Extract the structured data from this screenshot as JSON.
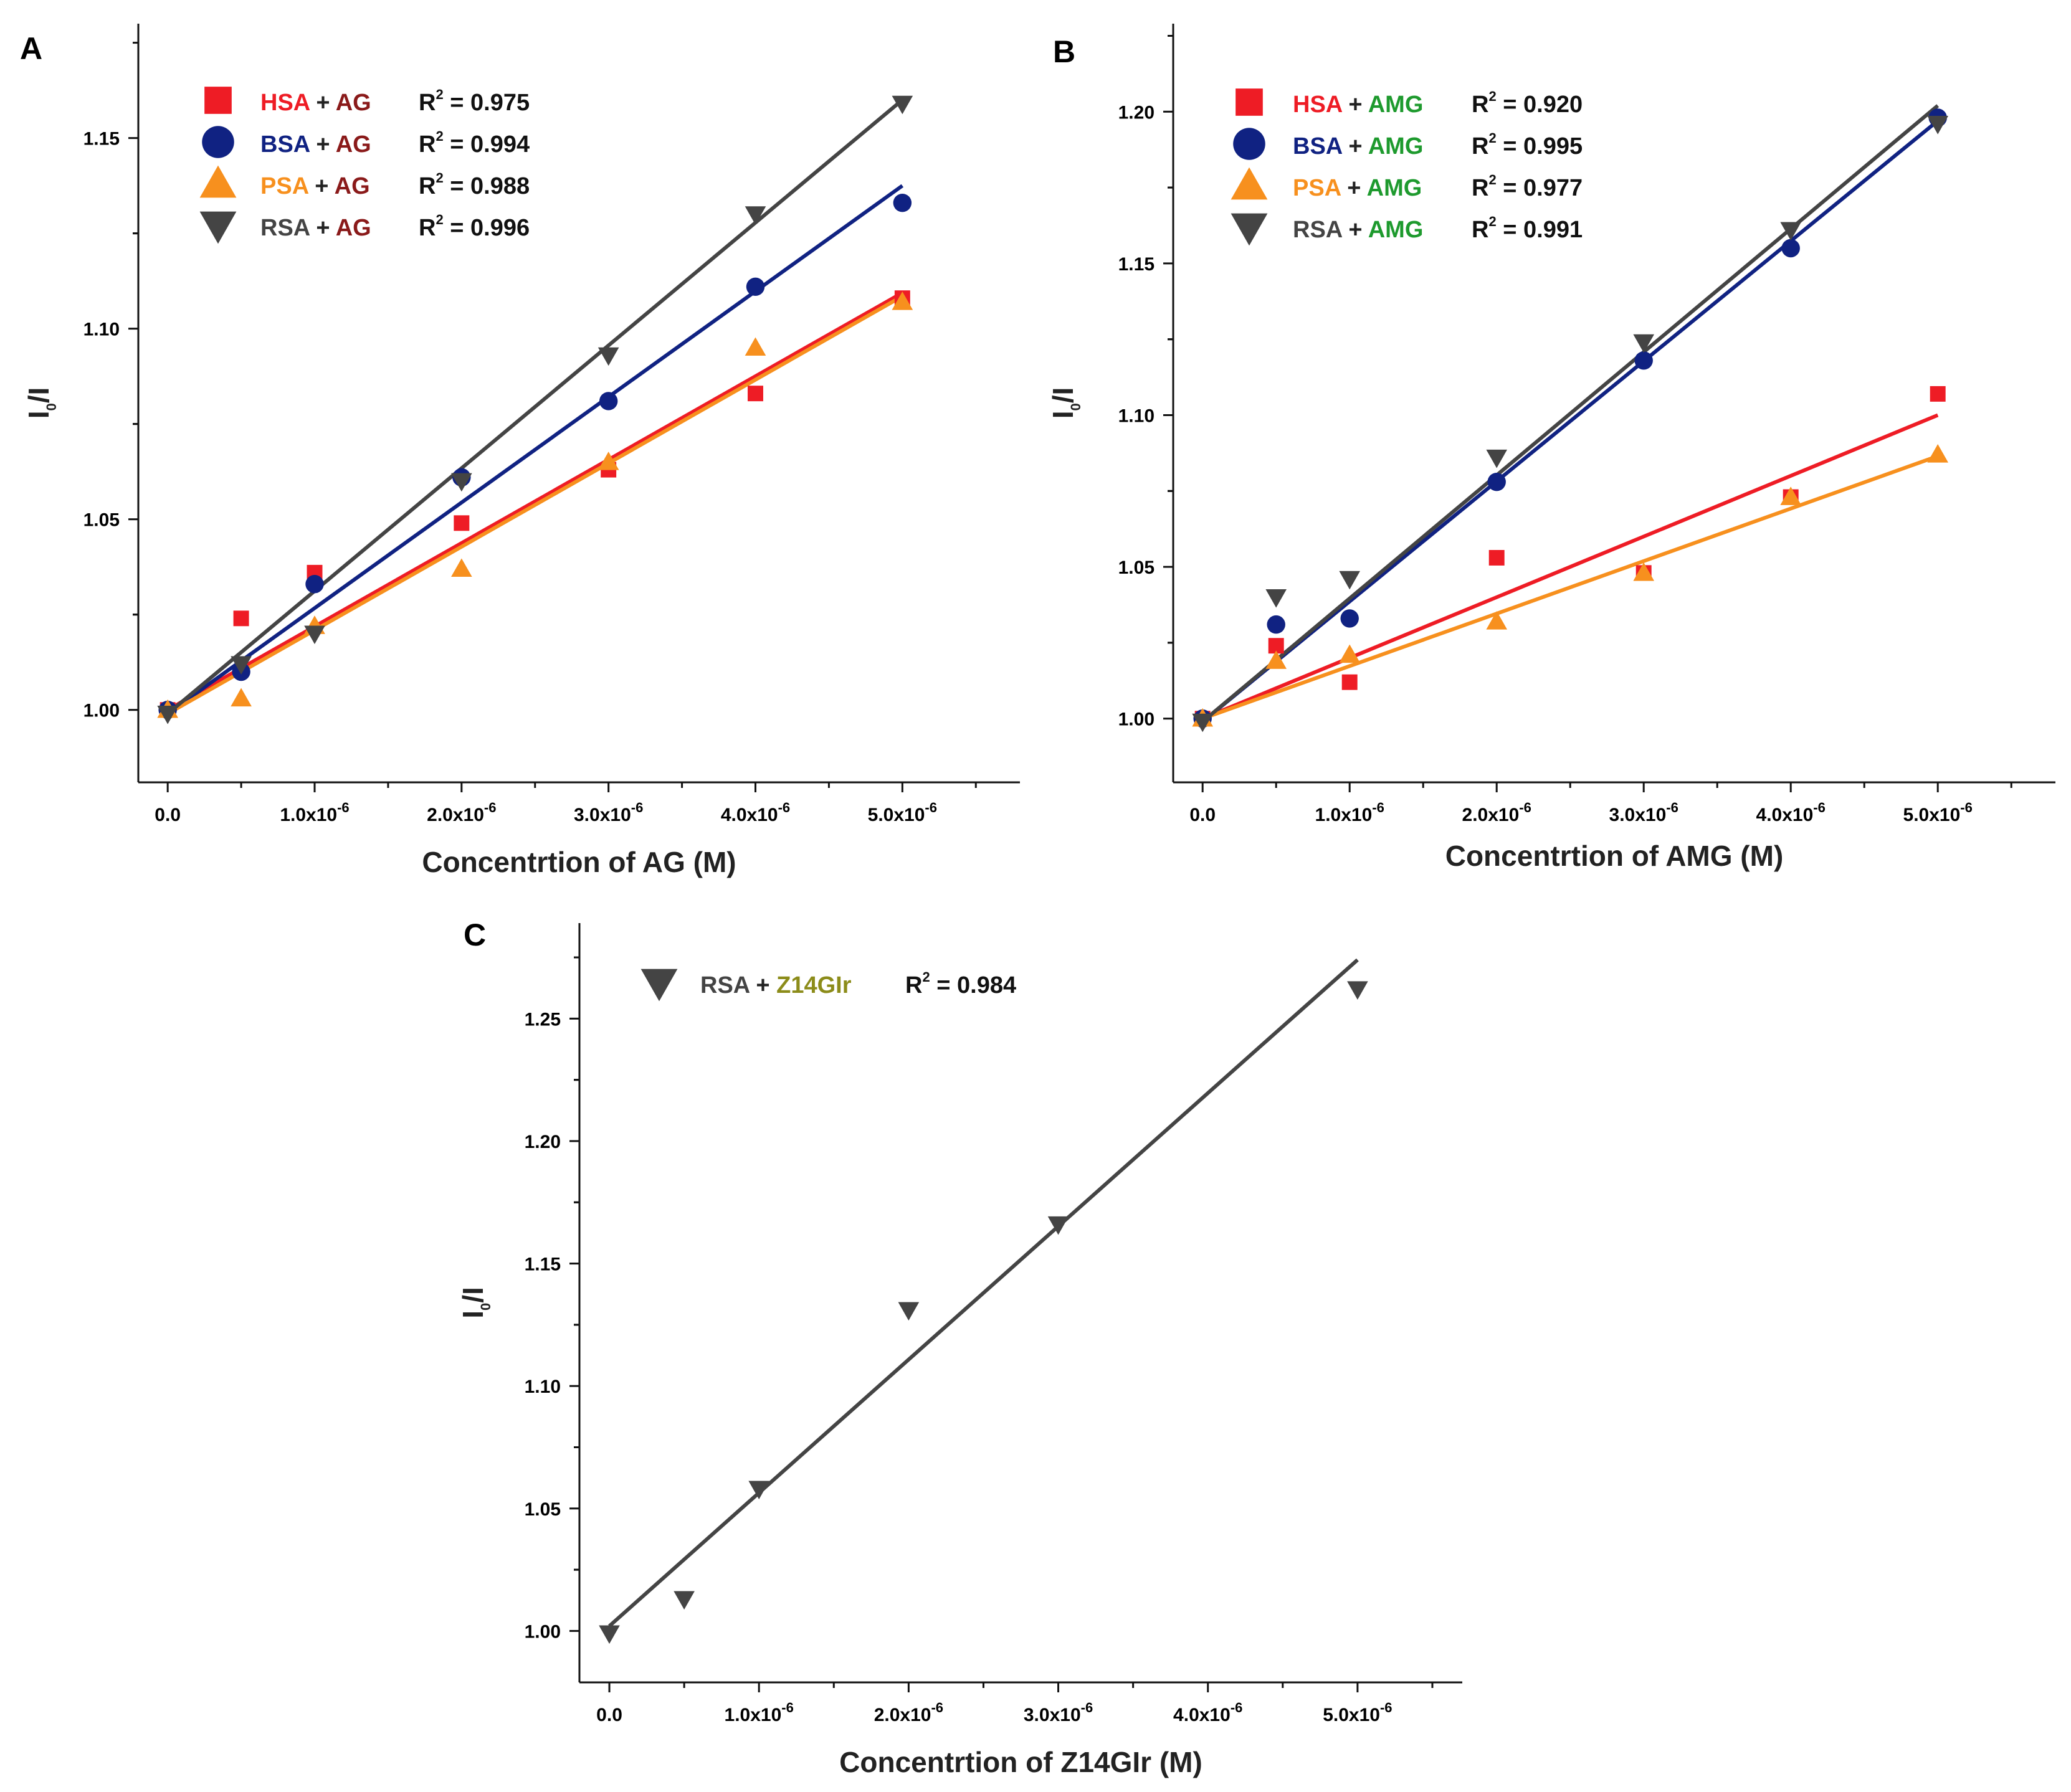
{
  "colors": {
    "HSA": "#ee1c25",
    "BSA": "#102282",
    "PSA": "#f7901e",
    "RSA": "#444444",
    "AG": "#8a1a1a",
    "AMG": "#1e9a2e",
    "Z14GIr": "#8c8c1a",
    "plus": "#222222",
    "axis": "#111111"
  },
  "chart_data": [
    {
      "panel": "A",
      "type": "scatter",
      "xlabel": "Concentrtion of AG (M)",
      "ylabel": "I0/I",
      "ylabel_main": "I",
      "ylabel_sub": "0",
      "ylabel_tail": "/I",
      "xlim": [
        -2e-07,
        5.8e-06
      ],
      "ylim": [
        0.981,
        1.18
      ],
      "xticks": [
        0,
        1e-06,
        2e-06,
        3e-06,
        4e-06,
        5e-06
      ],
      "xtick_labels": [
        {
          "base": "0.0",
          "exp": ""
        },
        {
          "base": "1.0x10",
          "exp": "-6"
        },
        {
          "base": "2.0x10",
          "exp": "-6"
        },
        {
          "base": "3.0x10",
          "exp": "-6"
        },
        {
          "base": "4.0x10",
          "exp": "-6"
        },
        {
          "base": "5.0x10",
          "exp": "-6"
        }
      ],
      "yticks": [
        1.0,
        1.05,
        1.1,
        1.15
      ],
      "ytick_labels": [
        "1.00",
        "1.05",
        "1.10",
        "1.15"
      ],
      "ligand": "AG",
      "series": [
        {
          "name": "HSA",
          "marker": "square",
          "r2_label": "R",
          "r2_sup": "2",
          "r2_value": "= 0.975",
          "x": [
            0,
            5e-07,
            1e-06,
            2e-06,
            3e-06,
            4e-06,
            5e-06
          ],
          "y": [
            1.0,
            1.024,
            1.036,
            1.049,
            1.063,
            1.083,
            1.108
          ],
          "fit": [
            1.0,
            1.1094
          ]
        },
        {
          "name": "BSA",
          "marker": "circle",
          "r2_label": "R",
          "r2_sup": "2",
          "r2_value": "= 0.994",
          "x": [
            0,
            5e-07,
            1e-06,
            2e-06,
            3e-06,
            4e-06,
            5e-06
          ],
          "y": [
            1.0,
            1.01,
            1.033,
            1.061,
            1.081,
            1.111,
            1.133
          ],
          "fit": [
            0.999,
            1.1375
          ]
        },
        {
          "name": "PSA",
          "marker": "triangle-up",
          "r2_label": "R",
          "r2_sup": "2",
          "r2_value": "= 0.988",
          "x": [
            0,
            5e-07,
            1e-06,
            2e-06,
            3e-06,
            4e-06,
            5e-06
          ],
          "y": [
            1.0,
            1.003,
            1.022,
            1.037,
            1.065,
            1.095,
            1.107
          ],
          "fit": [
            0.999,
            1.1085
          ]
        },
        {
          "name": "RSA",
          "marker": "triangle-down",
          "r2_label": "R",
          "r2_sup": "2",
          "r2_value": "= 0.996",
          "x": [
            0,
            5e-07,
            1e-06,
            2e-06,
            3e-06,
            4e-06,
            5e-06
          ],
          "y": [
            0.999,
            1.012,
            1.02,
            1.06,
            1.093,
            1.13,
            1.159
          ],
          "fit": [
            0.999,
            1.16
          ]
        }
      ]
    },
    {
      "panel": "B",
      "type": "scatter",
      "xlabel": "Concentrtion of AMG (M)",
      "ylabel": "I0/I",
      "ylabel_main": "I",
      "ylabel_sub": "0",
      "ylabel_tail": "/I",
      "xlim": [
        -2e-07,
        5.8e-06
      ],
      "ylim": [
        0.979,
        1.229
      ],
      "xticks": [
        0,
        1e-06,
        2e-06,
        3e-06,
        4e-06,
        5e-06
      ],
      "xtick_labels": [
        {
          "base": "0.0",
          "exp": ""
        },
        {
          "base": "1.0x10",
          "exp": "-6"
        },
        {
          "base": "2.0x10",
          "exp": "-6"
        },
        {
          "base": "3.0x10",
          "exp": "-6"
        },
        {
          "base": "4.0x10",
          "exp": "-6"
        },
        {
          "base": "5.0x10",
          "exp": "-6"
        }
      ],
      "yticks": [
        1.0,
        1.05,
        1.1,
        1.15,
        1.2
      ],
      "ytick_labels": [
        "1.00",
        "1.05",
        "1.10",
        "1.15",
        "1.20"
      ],
      "ligand": "AMG",
      "series": [
        {
          "name": "HSA",
          "marker": "square",
          "r2_label": "R",
          "r2_sup": "2",
          "r2_value": "= 0.920",
          "x": [
            0,
            5e-07,
            1e-06,
            2e-06,
            3e-06,
            4e-06,
            5e-06
          ],
          "y": [
            1.0,
            1.024,
            1.012,
            1.053,
            1.048,
            1.073,
            1.107
          ],
          "fit": [
            1.0,
            1.1
          ]
        },
        {
          "name": "BSA",
          "marker": "circle",
          "r2_label": "R",
          "r2_sup": "2",
          "r2_value": "= 0.995",
          "x": [
            0,
            5e-07,
            1e-06,
            2e-06,
            3e-06,
            4e-06,
            5e-06
          ],
          "y": [
            1.0,
            1.031,
            1.033,
            1.078,
            1.118,
            1.155,
            1.198
          ],
          "fit": [
            0.999,
            1.197
          ]
        },
        {
          "name": "PSA",
          "marker": "triangle-up",
          "r2_label": "R",
          "r2_sup": "2",
          "r2_value": "= 0.977",
          "x": [
            0,
            5e-07,
            1e-06,
            2e-06,
            3e-06,
            4e-06,
            5e-06
          ],
          "y": [
            1.0,
            1.019,
            1.021,
            1.032,
            1.048,
            1.073,
            1.087
          ],
          "fit": [
            1.0,
            1.0865
          ]
        },
        {
          "name": "RSA",
          "marker": "triangle-down",
          "r2_label": "R",
          "r2_sup": "2",
          "r2_value": "= 0.991",
          "x": [
            0,
            5e-07,
            1e-06,
            2e-06,
            3e-06,
            4e-06,
            5e-06
          ],
          "y": [
            0.999,
            1.04,
            1.046,
            1.086,
            1.124,
            1.161,
            1.196
          ],
          "fit": [
            0.999,
            1.202
          ]
        }
      ]
    },
    {
      "panel": "C",
      "type": "scatter",
      "xlabel": "Concentrtion of Z14GIr (M)",
      "ylabel": "I0/I",
      "ylabel_main": "I",
      "ylabel_sub": "0",
      "ylabel_tail": "/I",
      "xlim": [
        -2e-07,
        5.7e-06
      ],
      "ylim": [
        0.979,
        1.289
      ],
      "xticks": [
        0,
        1e-06,
        2e-06,
        3e-06,
        4e-06,
        5e-06
      ],
      "xtick_labels": [
        {
          "base": "0.0",
          "exp": ""
        },
        {
          "base": "1.0x10",
          "exp": "-6"
        },
        {
          "base": "2.0x10",
          "exp": "-6"
        },
        {
          "base": "3.0x10",
          "exp": "-6"
        },
        {
          "base": "4.0x10",
          "exp": "-6"
        },
        {
          "base": "5.0x10",
          "exp": "-6"
        }
      ],
      "yticks": [
        1.0,
        1.05,
        1.1,
        1.15,
        1.2,
        1.25
      ],
      "ytick_labels": [
        "1.00",
        "1.05",
        "1.10",
        "1.15",
        "1.20",
        "1.25"
      ],
      "ligand": "Z14GIr",
      "series": [
        {
          "name": "RSA",
          "marker": "triangle-down",
          "r2_label": "R",
          "r2_sup": "2",
          "r2_value": "= 0.984",
          "x": [
            0,
            5e-07,
            1e-06,
            2e-06,
            3e-06,
            5e-06
          ],
          "y": [
            0.999,
            1.013,
            1.058,
            1.131,
            1.166,
            1.262
          ],
          "fit": [
            1.002,
            1.274
          ]
        }
      ]
    }
  ]
}
